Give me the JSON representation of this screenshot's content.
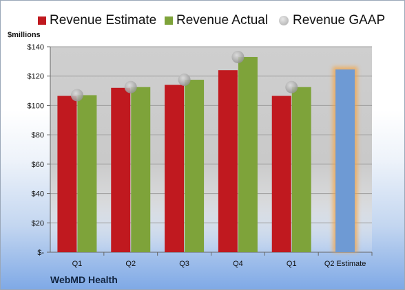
{
  "chart_data": {
    "type": "bar",
    "title": "",
    "ylabel": "$millions",
    "ylim": [
      0,
      140
    ],
    "yticks": [
      "$-",
      "$20",
      "$40",
      "$60",
      "$80",
      "$100",
      "$120",
      "$140"
    ],
    "categories": [
      "Q1",
      "Q2",
      "Q3",
      "Q4",
      "Q1",
      "Q2 Estimate"
    ],
    "series": [
      {
        "name": "Revenue Estimate",
        "color": "#c0191f",
        "values": [
          106.5,
          112,
          114,
          124,
          106.5,
          null
        ]
      },
      {
        "name": "Revenue Actual",
        "color": "#7ea33a",
        "values": [
          107,
          112.5,
          117.5,
          133,
          112.5,
          null
        ]
      },
      {
        "name": "Revenue GAAP",
        "color": "#a9a9a9",
        "values": [
          107,
          112.5,
          117.5,
          133,
          112.5,
          null
        ]
      }
    ],
    "highlight": {
      "category": "Q2 Estimate",
      "value": 124.5,
      "color": "#6e9ad4",
      "glow": "#f5a545"
    },
    "grid": true,
    "legend_position": "top",
    "footer": "WebMD Health"
  }
}
